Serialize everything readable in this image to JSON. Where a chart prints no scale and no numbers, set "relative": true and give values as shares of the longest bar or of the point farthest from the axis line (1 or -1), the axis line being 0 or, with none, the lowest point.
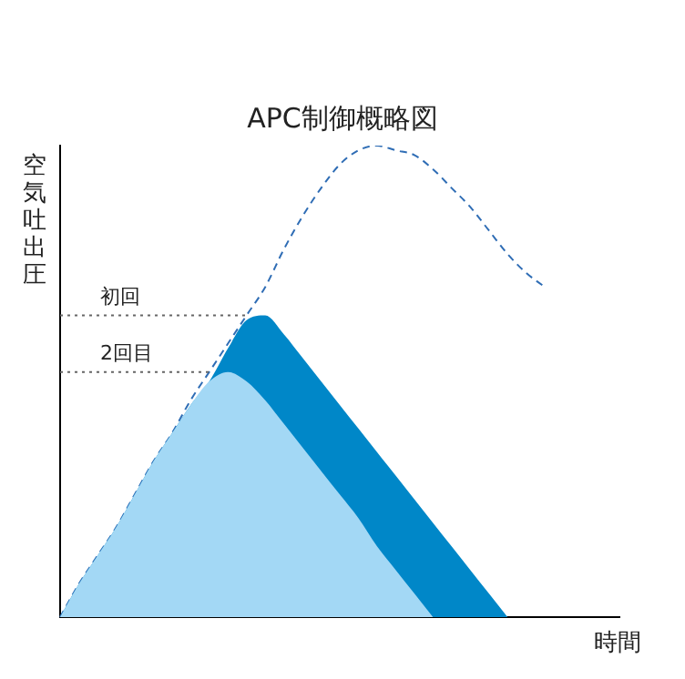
{
  "chart_data": {
    "type": "area",
    "title": "APC制御概略図",
    "xlabel": "時間",
    "ylabel": "空気吐出圧",
    "relative": true,
    "grid": false,
    "legend": false,
    "categories": [
      null,
      null,
      null,
      null,
      null,
      null,
      null,
      null,
      null,
      null,
      null,
      null,
      null,
      null,
      null,
      null,
      null,
      null,
      null,
      null,
      null,
      null,
      null,
      null,
      null,
      null,
      null,
      null,
      null,
      null,
      null
    ],
    "series": [
      {
        "type": "line",
        "line_style": "dashed",
        "marker": "none",
        "color": "#2f6db5",
        "values": [
          0,
          0.07,
          0.13,
          0.19,
          0.26,
          0.33,
          0.39,
          0.46,
          0.52,
          0.58,
          0.64,
          0.7,
          0.78,
          0.85,
          0.91,
          0.96,
          0.99,
          1,
          0.99,
          0.98,
          0.95,
          0.91,
          0.87,
          0.82,
          0.77,
          0.73,
          0.7,
          null,
          null,
          null,
          null
        ]
      },
      {
        "type": "area",
        "color": "#0087c8",
        "values": [
          0,
          0.07,
          0.13,
          0.19,
          0.26,
          0.33,
          0.39,
          0.45,
          0.5,
          0.57,
          0.63,
          0.64,
          0.6,
          0.55,
          0.5,
          0.45,
          0.4,
          0.35,
          0.3,
          0.25,
          0.2,
          0.15,
          0.1,
          0.05,
          0,
          null,
          null,
          null,
          null,
          null,
          null
        ]
      },
      {
        "type": "area",
        "color": "#a3d8f5",
        "values": [
          0,
          0.07,
          0.13,
          0.19,
          0.26,
          0.33,
          0.39,
          0.45,
          0.5,
          0.52,
          0.5,
          0.46,
          0.41,
          0.36,
          0.31,
          0.26,
          0.21,
          0.15,
          0.1,
          0.05,
          0,
          null,
          null,
          null,
          null,
          null,
          null,
          null,
          null,
          null,
          null
        ]
      }
    ],
    "ref_lines": [
      {
        "axis": "y",
        "value": 0.64,
        "label": "初回",
        "color": "#666666",
        "line_style": "dotted"
      },
      {
        "axis": "y",
        "value": 0.52,
        "label": "2回目",
        "color": "#666666",
        "line_style": "dotted"
      }
    ]
  }
}
